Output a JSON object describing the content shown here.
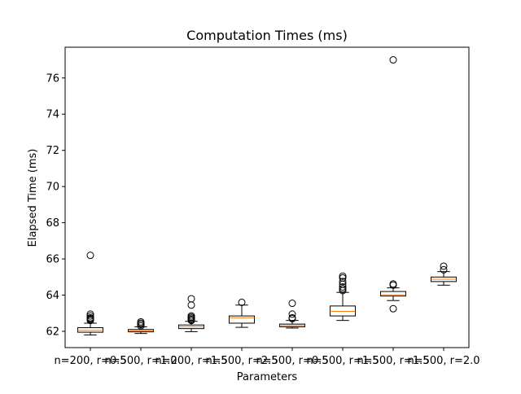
{
  "chart_data": {
    "type": "box",
    "title": "Computation Times (ms)",
    "xlabel": "Parameters",
    "ylabel": "Elapsed Time (ms)",
    "ylim": [
      61.1,
      77.7
    ],
    "yticks": [
      62,
      64,
      66,
      68,
      70,
      72,
      74,
      76
    ],
    "grid": false,
    "categories": [
      "n=200, r=0.5",
      "n=500, r=1.0",
      "n=200, r=1.5",
      "n=500, r=2.5",
      "n=500, r=0.5",
      "n=500, r=1.5",
      "n=500, r=1.5",
      "n=500, r=2.0"
    ],
    "boxes": [
      {
        "whislo": 61.8,
        "q1": 61.95,
        "med": 62.05,
        "q3": 62.2,
        "whishi": 62.45,
        "fliers": [
          62.6,
          62.65,
          62.7,
          62.75,
          62.85,
          62.95,
          66.2
        ]
      },
      {
        "whislo": 61.88,
        "q1": 61.97,
        "med": 62.03,
        "q3": 62.1,
        "whishi": 62.25,
        "fliers": [
          62.3,
          62.38,
          62.45,
          62.52
        ]
      },
      {
        "whislo": 61.98,
        "q1": 62.15,
        "med": 62.25,
        "q3": 62.35,
        "whishi": 62.55,
        "fliers": [
          62.6,
          62.65,
          62.72,
          62.78,
          62.85,
          63.45,
          63.8
        ]
      },
      {
        "whislo": 62.22,
        "q1": 62.45,
        "med": 62.75,
        "q3": 62.85,
        "whishi": 63.45,
        "fliers": [
          63.6
        ]
      },
      {
        "whislo": 62.18,
        "q1": 62.25,
        "med": 62.32,
        "q3": 62.4,
        "whishi": 62.6,
        "fliers": [
          62.7,
          62.75,
          62.95,
          63.55
        ]
      },
      {
        "whislo": 62.6,
        "q1": 62.85,
        "med": 63.1,
        "q3": 63.4,
        "whishi": 64.15,
        "fliers": [
          64.25,
          64.35,
          64.45,
          64.6,
          64.75,
          64.95,
          65.05
        ]
      },
      {
        "whislo": 63.7,
        "q1": 63.95,
        "med": 64.02,
        "q3": 64.2,
        "whishi": 64.4,
        "fliers": [
          63.25,
          64.55,
          64.62,
          77.0
        ]
      },
      {
        "whislo": 64.55,
        "q1": 64.75,
        "med": 64.88,
        "q3": 65.0,
        "whishi": 65.3,
        "fliers": [
          65.4,
          65.6
        ]
      }
    ]
  }
}
